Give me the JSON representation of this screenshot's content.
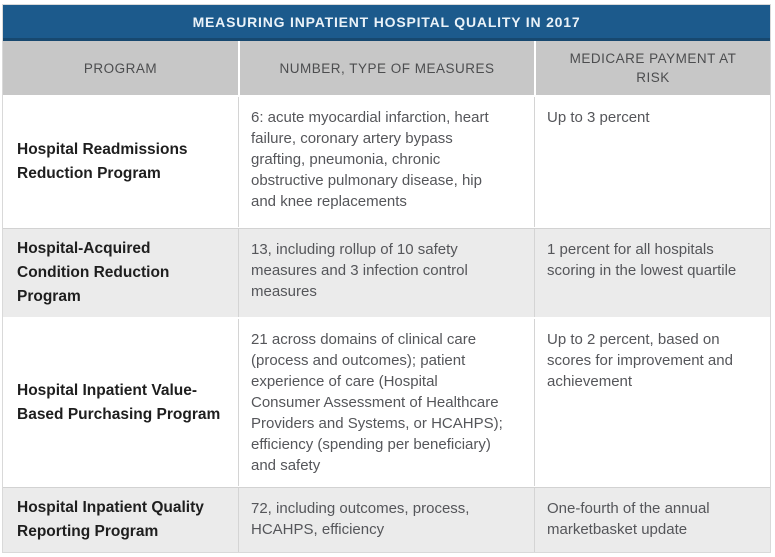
{
  "figure": {
    "title": "MEASURING INPATIENT HOSPITAL QUALITY IN 2017"
  },
  "table": {
    "columns": [
      {
        "label": "PROGRAM"
      },
      {
        "label": "NUMBER, TYPE OF MEASURES"
      },
      {
        "label": "MEDICARE PAYMENT AT RISK"
      }
    ],
    "rows": [
      {
        "program": "Hospital Readmissions Reduction Program",
        "measures": "6: acute myocardial infarction, heart failure, coronary artery bypass grafting, pneumonia, chronic obstructive pulmonary disease, hip and knee replacements",
        "payment": "Up to 3 percent"
      },
      {
        "program": "Hospital-Acquired Condition Reduction Program",
        "measures": "13, including rollup of 10 safety measures and 3 infection control measures",
        "payment": "1 percent for all hospitals scoring in the lowest quartile"
      },
      {
        "program": "Hospital Inpatient Value-Based Purchasing Program",
        "measures": "21 across domains of clinical care (process and outcomes); patient experience of care (Hospital Consumer Assessment of Healthcare Providers and Systems, or HCAHPS); efficiency (spending per beneficiary) and safety",
        "payment": "Up to 2 percent, based on scores for improvement and achievement"
      },
      {
        "program": "Hospital Inpatient Quality Reporting Program",
        "measures": "72, including outcomes, process, HCAHPS, efficiency",
        "payment": "One-fourth of the annual marketbasket update"
      }
    ]
  },
  "colors": {
    "title_bar_bg": "#1c5a8c",
    "title_bar_border": "#17486f",
    "title_text": "#eaf2f8",
    "header_bg": "#c7c7c7",
    "header_text": "#4c4d4f",
    "alt_row_bg": "#ebebeb",
    "body_text": "#55565a",
    "program_text": "#1e1e1e",
    "divider": "#d4d4d4"
  }
}
